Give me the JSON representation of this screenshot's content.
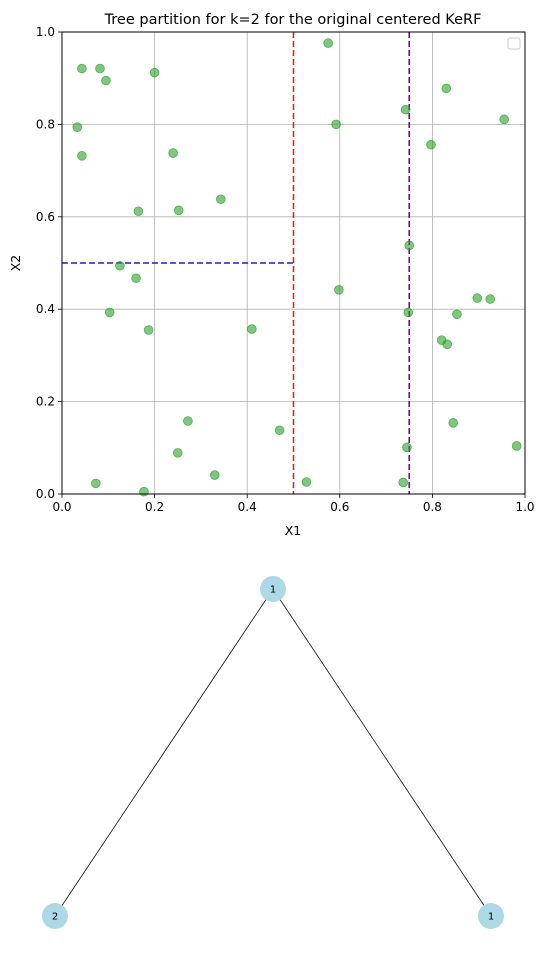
{
  "chart_data": [
    {
      "type": "scatter",
      "title": "Tree partition for k=2 for the original centered KeRF",
      "xlabel": "X1",
      "ylabel": "X2",
      "xlim": [
        0,
        1
      ],
      "ylim": [
        0,
        1
      ],
      "xticks": [
        "0.0",
        "0.2",
        "0.4",
        "0.6",
        "0.8",
        "1.0"
      ],
      "yticks": [
        "0.0",
        "0.2",
        "0.4",
        "0.6",
        "0.8",
        "1.0"
      ],
      "grid": true,
      "legend": "top-right (empty)",
      "point_color": "#2ca02c",
      "points": [
        {
          "x": 0.043,
          "y": 0.921
        },
        {
          "x": 0.082,
          "y": 0.921
        },
        {
          "x": 0.095,
          "y": 0.895
        },
        {
          "x": 0.2,
          "y": 0.912
        },
        {
          "x": 0.575,
          "y": 0.976
        },
        {
          "x": 0.83,
          "y": 0.878
        },
        {
          "x": 0.742,
          "y": 0.832
        },
        {
          "x": 0.955,
          "y": 0.811
        },
        {
          "x": 0.033,
          "y": 0.794
        },
        {
          "x": 0.592,
          "y": 0.8
        },
        {
          "x": 0.797,
          "y": 0.756
        },
        {
          "x": 0.043,
          "y": 0.732
        },
        {
          "x": 0.24,
          "y": 0.738
        },
        {
          "x": 0.343,
          "y": 0.638
        },
        {
          "x": 0.165,
          "y": 0.612
        },
        {
          "x": 0.252,
          "y": 0.614
        },
        {
          "x": 0.75,
          "y": 0.538
        },
        {
          "x": 0.125,
          "y": 0.494
        },
        {
          "x": 0.16,
          "y": 0.467
        },
        {
          "x": 0.598,
          "y": 0.442
        },
        {
          "x": 0.897,
          "y": 0.424
        },
        {
          "x": 0.925,
          "y": 0.422
        },
        {
          "x": 0.103,
          "y": 0.393
        },
        {
          "x": 0.748,
          "y": 0.393
        },
        {
          "x": 0.853,
          "y": 0.389
        },
        {
          "x": 0.187,
          "y": 0.355
        },
        {
          "x": 0.41,
          "y": 0.357
        },
        {
          "x": 0.82,
          "y": 0.333
        },
        {
          "x": 0.832,
          "y": 0.324
        },
        {
          "x": 0.272,
          "y": 0.158
        },
        {
          "x": 0.845,
          "y": 0.154
        },
        {
          "x": 0.47,
          "y": 0.138
        },
        {
          "x": 0.745,
          "y": 0.101
        },
        {
          "x": 0.982,
          "y": 0.104
        },
        {
          "x": 0.25,
          "y": 0.089
        },
        {
          "x": 0.33,
          "y": 0.041
        },
        {
          "x": 0.073,
          "y": 0.023
        },
        {
          "x": 0.528,
          "y": 0.026
        },
        {
          "x": 0.737,
          "y": 0.025
        },
        {
          "x": 0.177,
          "y": 0.005
        }
      ],
      "split_lines": [
        {
          "orientation": "vertical",
          "at": 0.5,
          "from": 0,
          "to": 1,
          "color": "#d62728"
        },
        {
          "orientation": "vertical",
          "at": 0.75,
          "from": 0,
          "to": 1,
          "color": "#800080"
        },
        {
          "orientation": "horizontal",
          "at": 0.5,
          "from": 0,
          "to": 0.5,
          "color": "#1f1fd0"
        }
      ]
    },
    {
      "type": "tree",
      "node_color": "#add8e6",
      "nodes": [
        {
          "id": "root",
          "label": "1"
        },
        {
          "id": "left",
          "label": "2"
        },
        {
          "id": "right",
          "label": "1"
        }
      ],
      "edges": [
        {
          "from": "root",
          "to": "left"
        },
        {
          "from": "root",
          "to": "right"
        }
      ]
    }
  ]
}
